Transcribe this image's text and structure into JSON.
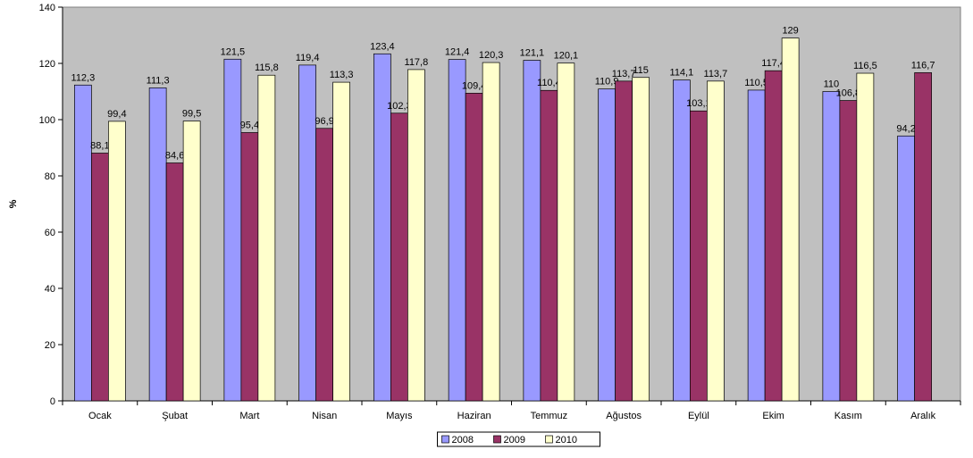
{
  "chart_data": {
    "type": "bar",
    "title": "",
    "xlabel": "",
    "ylabel": "%",
    "ylim": [
      0,
      140
    ],
    "yticks": [
      0,
      20,
      40,
      60,
      80,
      100,
      120,
      140
    ],
    "ytick_labels": [
      "0",
      "20",
      "40",
      "60",
      "80",
      "100",
      "120",
      "140"
    ],
    "grid": false,
    "legend_position": "bottom",
    "plot_background": "#C0C0C0",
    "categories": [
      "Ocak",
      "Şubat",
      "Mart",
      "Nisan",
      "Mayıs",
      "Haziran",
      "Temmuz",
      "Ağustos",
      "Eylül",
      "Ekim",
      "Kasım",
      "Aralık"
    ],
    "series": [
      {
        "name": "2008",
        "color": "#9999FF",
        "values": [
          112.3,
          111.3,
          121.5,
          119.4,
          123.4,
          121.4,
          121.1,
          110.9,
          114.1,
          110.5,
          110,
          94.2
        ],
        "labels": [
          "112,3",
          "111,3",
          "121,5",
          "119,4",
          "123,4",
          "121,4",
          "121,1",
          "110,9",
          "114,1",
          "110,5",
          "110",
          "94,2"
        ]
      },
      {
        "name": "2009",
        "color": "#993366",
        "values": [
          88.1,
          84.6,
          95.4,
          96.9,
          102.3,
          109.4,
          110.4,
          113.7,
          103.1,
          117.4,
          106.8,
          116.7
        ],
        "labels": [
          "88,1",
          "84,6",
          "95,4",
          "96,9",
          "102,3",
          "109,4",
          "110,4",
          "113,7",
          "103,1",
          "117,4",
          "106,8",
          "116,7"
        ]
      },
      {
        "name": "2010",
        "color": "#FFFFCC",
        "values": [
          99.4,
          99.5,
          115.8,
          113.3,
          117.8,
          120.3,
          120.1,
          115,
          113.7,
          129,
          116.5,
          null
        ],
        "labels": [
          "99,4",
          "99,5",
          "115,8",
          "113,3",
          "117,8",
          "120,3",
          "120,1",
          "115",
          "113,7",
          "129",
          "116,5",
          null
        ]
      }
    ]
  }
}
